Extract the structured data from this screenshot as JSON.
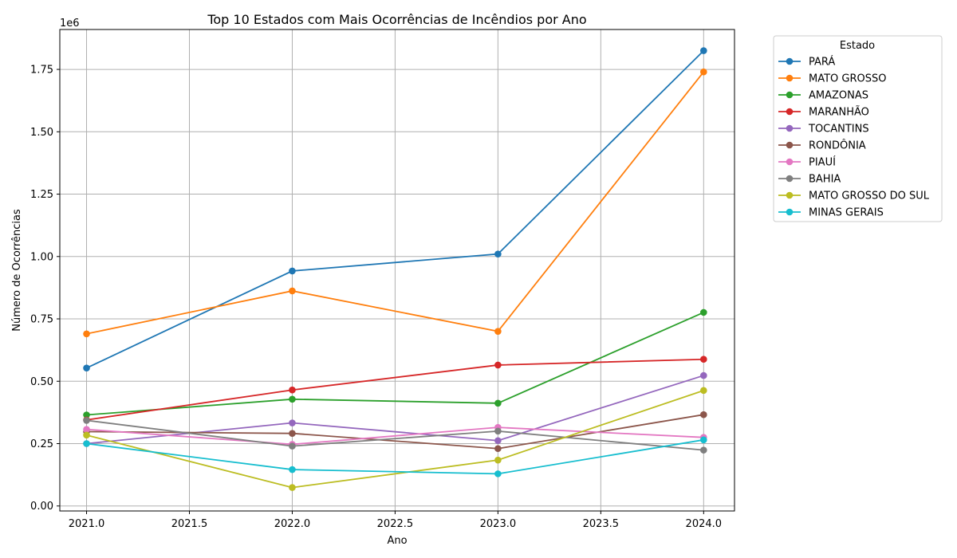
{
  "chart_data": {
    "type": "line",
    "title": "Top 10 Estados com Mais Ocorrências de Incêndios por Ano",
    "xlabel": "Ano",
    "ylabel": "Número de Ocorrências",
    "y_offset_text": "1e6",
    "xlim": [
      2020.87,
      2024.15
    ],
    "ylim": [
      -0.02,
      1.91
    ],
    "x": [
      2021,
      2022,
      2023,
      2024
    ],
    "x_ticks": [
      2021.0,
      2021.5,
      2022.0,
      2022.5,
      2023.0,
      2023.5,
      2024.0
    ],
    "x_tick_labels": [
      "2021.0",
      "2021.5",
      "2022.0",
      "2022.5",
      "2023.0",
      "2023.5",
      "2024.0"
    ],
    "y_ticks": [
      0.0,
      0.25,
      0.5,
      0.75,
      1.0,
      1.25,
      1.5,
      1.75
    ],
    "y_tick_labels": [
      "0.00",
      "0.25",
      "0.50",
      "0.75",
      "1.00",
      "1.25",
      "1.50",
      "1.75"
    ],
    "grid": true,
    "legend_title": "Estado",
    "legend_position": "outside-right",
    "series": [
      {
        "name": "PARÁ",
        "color": "#1f77b4",
        "values": [
          0.553,
          0.942,
          1.01,
          1.825
        ]
      },
      {
        "name": "MATO GROSSO",
        "color": "#ff7f0e",
        "values": [
          0.69,
          0.862,
          0.7,
          1.74
        ]
      },
      {
        "name": "AMAZONAS",
        "color": "#2ca02c",
        "values": [
          0.365,
          0.428,
          0.412,
          0.776
        ]
      },
      {
        "name": "MARANHÃO",
        "color": "#d62728",
        "values": [
          0.345,
          0.465,
          0.565,
          0.588
        ]
      },
      {
        "name": "TOCANTINS",
        "color": "#9467bd",
        "values": [
          0.25,
          0.333,
          0.262,
          0.523
        ]
      },
      {
        "name": "RONDÔNIA",
        "color": "#8c564b",
        "values": [
          0.298,
          0.291,
          0.23,
          0.366
        ]
      },
      {
        "name": "PIAUÍ",
        "color": "#e377c2",
        "values": [
          0.307,
          0.247,
          0.315,
          0.275
        ]
      },
      {
        "name": "BAHIA",
        "color": "#7f7f7f",
        "values": [
          0.343,
          0.24,
          0.3,
          0.224
        ]
      },
      {
        "name": "MATO GROSSO DO SUL",
        "color": "#bcbd22",
        "values": [
          0.284,
          0.074,
          0.184,
          0.463
        ]
      },
      {
        "name": "MINAS GERAIS",
        "color": "#17becf",
        "values": [
          0.25,
          0.146,
          0.129,
          0.265
        ]
      }
    ]
  }
}
